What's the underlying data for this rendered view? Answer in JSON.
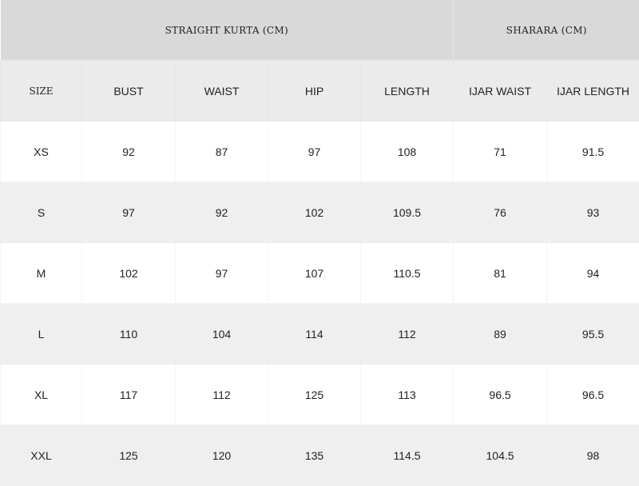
{
  "groups": {
    "kurta": "STRAIGHT KURTA (CM)",
    "sharara": "SHARARA (CM)"
  },
  "columns": [
    "SIZE",
    "BUST",
    "WAIST",
    "HIP",
    "LENGTH",
    "IJAR WAIST",
    "IJAR LENGTH"
  ],
  "rows": [
    [
      "XS",
      "92",
      "87",
      "97",
      "108",
      "71",
      "91.5"
    ],
    [
      "S",
      "97",
      "92",
      "102",
      "109.5",
      "76",
      "93"
    ],
    [
      "M",
      "102",
      "97",
      "107",
      "110.5",
      "81",
      "94"
    ],
    [
      "L",
      "110",
      "104",
      "114",
      "112",
      "89",
      "95.5"
    ],
    [
      "XL",
      "117",
      "112",
      "125",
      "113",
      "96.5",
      "96.5"
    ],
    [
      "XXL",
      "125",
      "120",
      "135",
      "114.5",
      "104.5",
      "98"
    ]
  ]
}
